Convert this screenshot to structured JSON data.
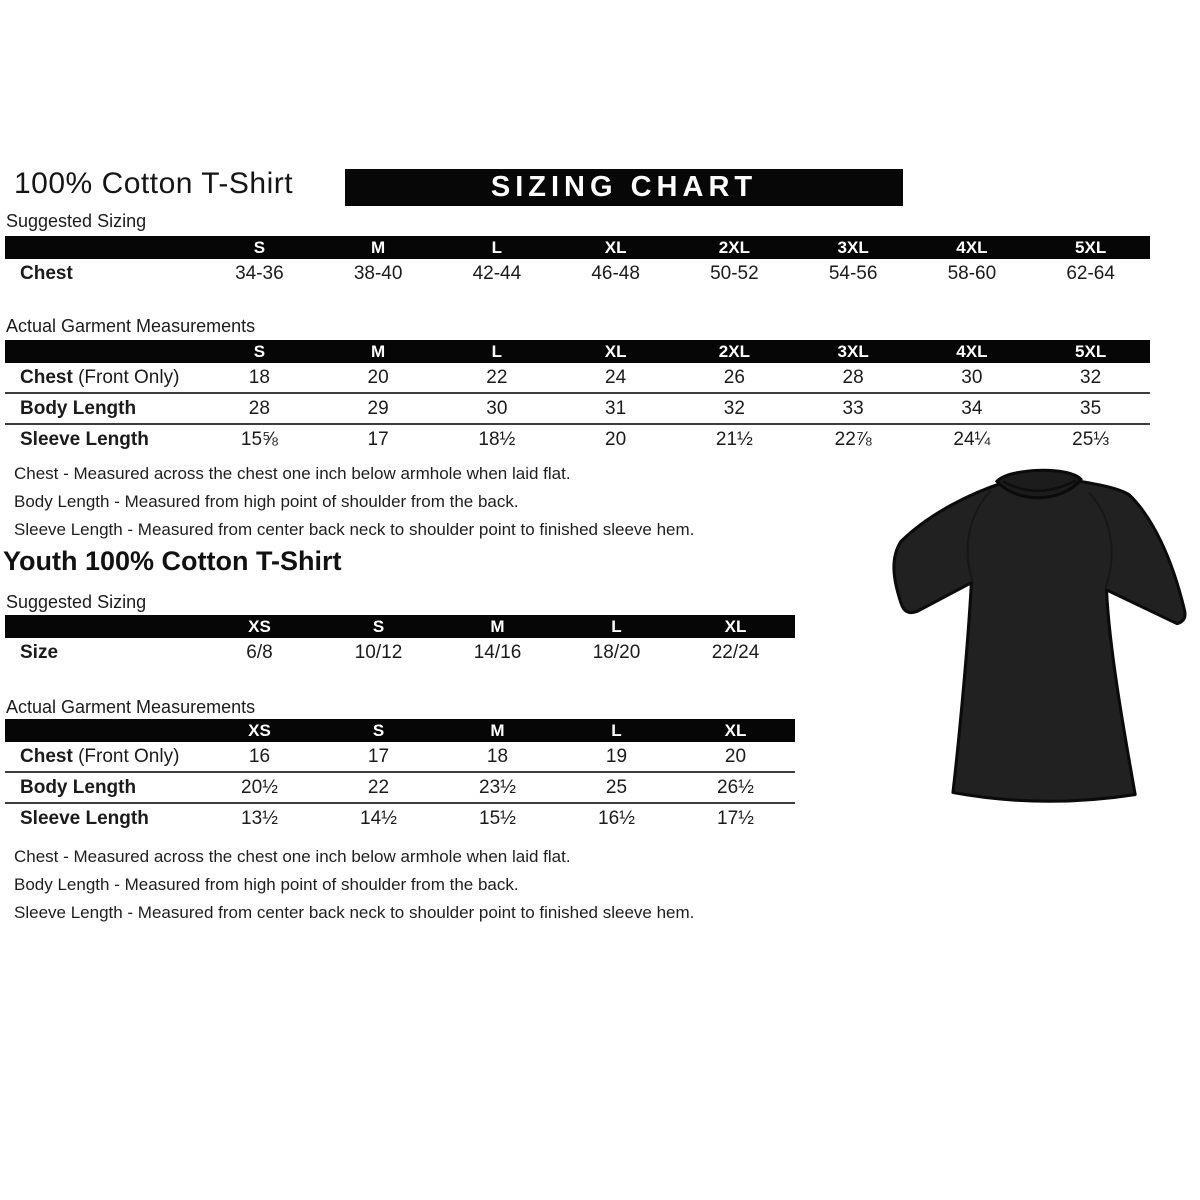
{
  "page": {
    "title": "100% Cotton T-Shirt",
    "banner": "SIZING CHART"
  },
  "adult": {
    "suggested": {
      "label": "Suggested Sizing",
      "columns": [
        "S",
        "M",
        "L",
        "XL",
        "2XL",
        "3XL",
        "4XL",
        "5XL"
      ],
      "rows": [
        {
          "label": "Chest",
          "values": [
            "34-36",
            "38-40",
            "42-44",
            "46-48",
            "50-52",
            "54-56",
            "58-60",
            "62-64"
          ]
        }
      ]
    },
    "actual": {
      "label": "Actual Garment Measurements",
      "columns": [
        "S",
        "M",
        "L",
        "XL",
        "2XL",
        "3XL",
        "4XL",
        "5XL"
      ],
      "rows": [
        {
          "label": "Chest",
          "label_suffix": " (Front Only)",
          "values": [
            "18",
            "20",
            "22",
            "24",
            "26",
            "28",
            "30",
            "32"
          ]
        },
        {
          "label": "Body Length",
          "values": [
            "28",
            "29",
            "30",
            "31",
            "32",
            "33",
            "34",
            "35"
          ]
        },
        {
          "label": "Sleeve Length",
          "values": [
            "15⅝",
            "17",
            "18½",
            "20",
            "21½",
            "22⅞",
            "24¼",
            "25⅓"
          ]
        }
      ]
    },
    "notes": [
      "Chest - Measured across the chest one inch below armhole when laid flat.",
      "Body Length - Measured from high point of shoulder from the back.",
      "Sleeve Length - Measured from center back neck to shoulder point to finished sleeve hem."
    ]
  },
  "youth": {
    "title": "Youth 100% Cotton T-Shirt",
    "suggested": {
      "label": "Suggested Sizing",
      "columns": [
        "XS",
        "S",
        "M",
        "L",
        "XL"
      ],
      "rows": [
        {
          "label": "Size",
          "values": [
            "6/8",
            "10/12",
            "14/16",
            "18/20",
            "22/24"
          ]
        }
      ]
    },
    "actual": {
      "label": "Actual Garment Measurements",
      "columns": [
        "XS",
        "S",
        "M",
        "L",
        "XL"
      ],
      "rows": [
        {
          "label": "Chest",
          "label_suffix": " (Front Only)",
          "values": [
            "16",
            "17",
            "18",
            "19",
            "20"
          ]
        },
        {
          "label": "Body Length",
          "values": [
            "20½",
            "22",
            "23½",
            "25",
            "26½"
          ]
        },
        {
          "label": "Sleeve Length",
          "values": [
            "13½",
            "14½",
            "15½",
            "16½",
            "17½"
          ]
        }
      ]
    },
    "notes": [
      "Chest - Measured across the chest one inch below armhole when laid flat.",
      "Body Length - Measured from high point of shoulder from the back.",
      "Sleeve Length - Measured from center back neck to shoulder point to finished sleeve hem."
    ]
  },
  "tshirt_image": {
    "name": "black-cotton-tshirt-photo",
    "fill_color": "#212121",
    "outline_color": "#0b0b0b"
  },
  "colors": {
    "header_bar": "#060606",
    "banner_bg": "#070707",
    "banner_text": "#ffffff",
    "row_separator": "#3d3d3d",
    "text": "#141414"
  }
}
